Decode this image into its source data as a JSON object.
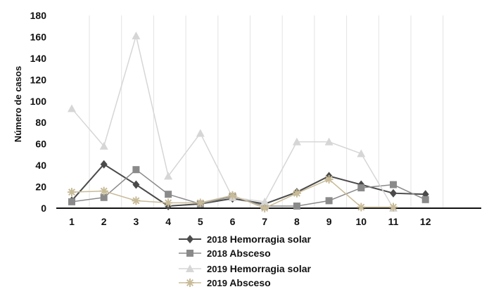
{
  "chart_data": {
    "type": "line",
    "title": "",
    "xlabel": "",
    "ylabel": "Número de casos",
    "ylim": [
      0,
      180
    ],
    "y_ticks": [
      "0",
      "20",
      "40",
      "60",
      "80",
      "100",
      "120",
      "140",
      "160",
      "180"
    ],
    "x": [
      "1",
      "2",
      "3",
      "4",
      "5",
      "6",
      "7",
      "8",
      "9",
      "10",
      "11",
      "12"
    ],
    "grid": "vertical",
    "legend_position": "bottom",
    "series": [
      {
        "year": "2018",
        "name": "Hemorragia solar",
        "color": "#4a4a4a",
        "marker": "diamond",
        "values": [
          7,
          41,
          22,
          2,
          4,
          9,
          4,
          15,
          30,
          22,
          14,
          13
        ]
      },
      {
        "year": "2018",
        "name": "Absceso",
        "color": "#8a8a8a",
        "marker": "square",
        "values": [
          6,
          10,
          36,
          13,
          4,
          11,
          2,
          2,
          7,
          19,
          22,
          8
        ]
      },
      {
        "year": "2019",
        "name": "Hemorragia solar",
        "color": "#d6d6d6",
        "marker": "triangle",
        "values": [
          93,
          58,
          161,
          30,
          70,
          10,
          6,
          62,
          62,
          51,
          0,
          null
        ]
      },
      {
        "year": "2019",
        "name": "Absceso",
        "color": "#c8bb98",
        "marker": "asterisk",
        "values": [
          15,
          16,
          7,
          5,
          5,
          12,
          0,
          14,
          27,
          1,
          1,
          null
        ]
      }
    ]
  }
}
